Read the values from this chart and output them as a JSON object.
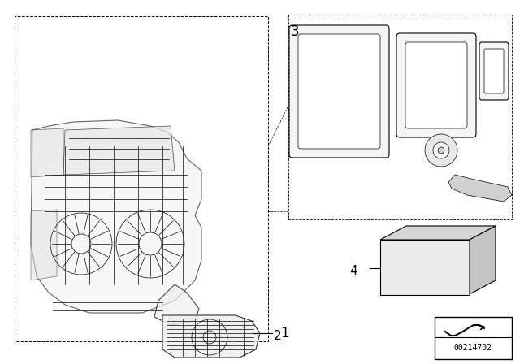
{
  "background_color": "#ffffff",
  "border_color": "#000000",
  "line_color": "#000000",
  "label_color": "#000000",
  "fig_width": 6.4,
  "fig_height": 4.48,
  "dpi": 100,
  "watermark_text": "00214702",
  "label_fontsize": 11,
  "watermark_fontsize": 7
}
